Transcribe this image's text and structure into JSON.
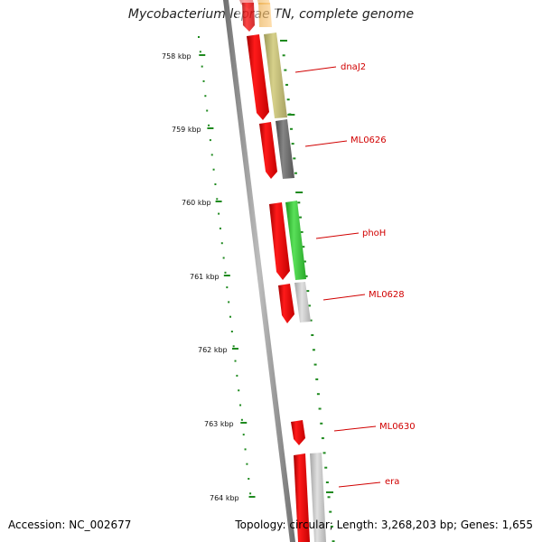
{
  "title": "Mycobacterium leprae TN, complete genome",
  "footer": {
    "accession": "Accession: NC_002677",
    "stats": "Topology: circular; Length: 3,268,203 bp; Genes: 1,655"
  },
  "colors": {
    "tick": "#1f8a1f",
    "backbone": "#8a8a8a",
    "cds": "#e60000",
    "label": "#d10000"
  },
  "ticks": [
    {
      "label": "758 kbp",
      "pos_kbp": 758
    },
    {
      "label": "759 kbp",
      "pos_kbp": 759
    },
    {
      "label": "760 kbp",
      "pos_kbp": 760
    },
    {
      "label": "761 kbp",
      "pos_kbp": 761
    },
    {
      "label": "762 kbp",
      "pos_kbp": 762
    },
    {
      "label": "763 kbp",
      "pos_kbp": 763
    },
    {
      "label": "764 kbp",
      "pos_kbp": 764
    }
  ],
  "genes": [
    {
      "name": "dnaJ2",
      "color": "#c4bd73"
    },
    {
      "name": "ML0626",
      "color": "#6b6b6b"
    },
    {
      "name": "phoH",
      "color": "#33c433"
    },
    {
      "name": "ML0628",
      "color": "#bdbdbd"
    },
    {
      "name": "ML0630",
      "color": "#e60000"
    },
    {
      "name": "era",
      "color": "#bdbdbd"
    }
  ]
}
